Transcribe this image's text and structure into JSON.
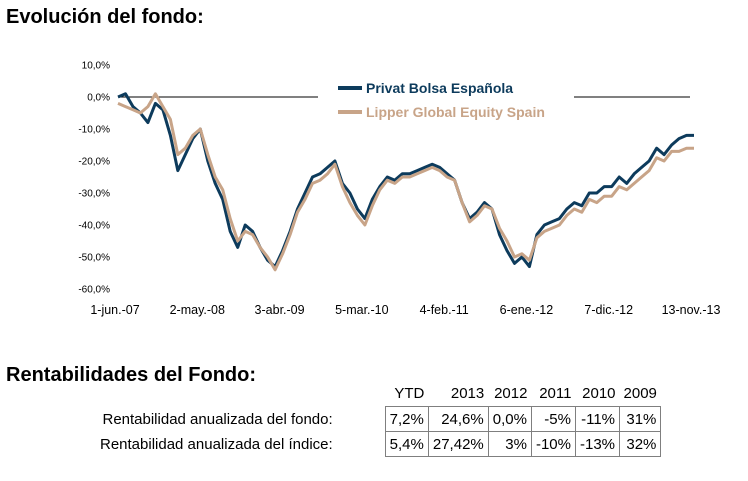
{
  "page": {
    "chart_heading": "Evolución del fondo:",
    "table_heading": "Rentabilidades del Fondo:"
  },
  "table": {
    "columns": [
      "YTD",
      "2013",
      "2012",
      "2011",
      "2010",
      "2009"
    ],
    "rows": [
      {
        "label": "Rentabilidad anualizada del fondo:",
        "values": [
          "7,2%",
          "24,6%",
          "0,0%",
          "-5%",
          "-11%",
          "31%"
        ]
      },
      {
        "label": "Rentabilidad anualizada del índice:",
        "values": [
          "5,4%",
          "27,42%",
          "3%",
          "-10%",
          "-13%",
          "32%"
        ]
      }
    ]
  },
  "chart_data": {
    "type": "line",
    "title": "Evolución del fondo:",
    "xlabel": "",
    "ylabel": "",
    "ylim": [
      -60,
      10
    ],
    "y_ticks": [
      "10,0%",
      "0,0%",
      "-10,0%",
      "-20,0%",
      "-30,0%",
      "-40,0%",
      "-50,0%",
      "-60,0%"
    ],
    "y_tick_values": [
      10,
      0,
      -10,
      -20,
      -30,
      -40,
      -50,
      -60
    ],
    "x_ticks": [
      "1-jun.-07",
      "2-may.-08",
      "3-abr.-09",
      "5-mar.-10",
      "4-feb.-11",
      "6-ene.-12",
      "7-dic.-12",
      "13-nov.-13"
    ],
    "x_tick_index": [
      0,
      11,
      22,
      33,
      44,
      55,
      66,
      77
    ],
    "grid": false,
    "legend_position": "top-right",
    "series": [
      {
        "name": "Privat Bolsa Española",
        "color": "#0d3b5c",
        "values": [
          0,
          1,
          -3,
          -5,
          -8,
          -2,
          -4,
          -12,
          -23,
          -18,
          -13,
          -10,
          -20,
          -27,
          -32,
          -42,
          -47,
          -40,
          -42,
          -47,
          -51,
          -53,
          -48,
          -42,
          -35,
          -30,
          -25,
          -24,
          -22,
          -20,
          -27,
          -30,
          -35,
          -38,
          -32,
          -28,
          -25,
          -26,
          -24,
          -24,
          -23,
          -22,
          -21,
          -22,
          -24,
          -26,
          -33,
          -38,
          -36,
          -33,
          -35,
          -43,
          -48,
          -52,
          -50,
          -53,
          -43,
          -40,
          -39,
          -38,
          -35,
          -33,
          -34,
          -30,
          -30,
          -28,
          -28,
          -25,
          -27,
          -24,
          -22,
          -20,
          -16,
          -18,
          -15,
          -13,
          -12,
          -12
        ]
      },
      {
        "name": "Lipper Global Equity Spain",
        "color": "#c8a488",
        "values": [
          -2,
          -3,
          -4,
          -5,
          -3,
          1,
          -3,
          -7,
          -18,
          -16,
          -12,
          -10,
          -18,
          -25,
          -29,
          -38,
          -45,
          -42,
          -43,
          -47,
          -50,
          -54,
          -49,
          -43,
          -36,
          -32,
          -27,
          -26,
          -24,
          -21,
          -28,
          -33,
          -37,
          -40,
          -34,
          -29,
          -26,
          -27,
          -25,
          -25,
          -24,
          -23,
          -22,
          -23,
          -25,
          -26,
          -33,
          -39,
          -37,
          -34,
          -35,
          -41,
          -45,
          -50,
          -49,
          -51,
          -44,
          -42,
          -41,
          -40,
          -37,
          -35,
          -36,
          -32,
          -33,
          -31,
          -31,
          -28,
          -29,
          -27,
          -25,
          -23,
          -19,
          -20,
          -17,
          -17,
          -16,
          -16
        ]
      }
    ]
  }
}
